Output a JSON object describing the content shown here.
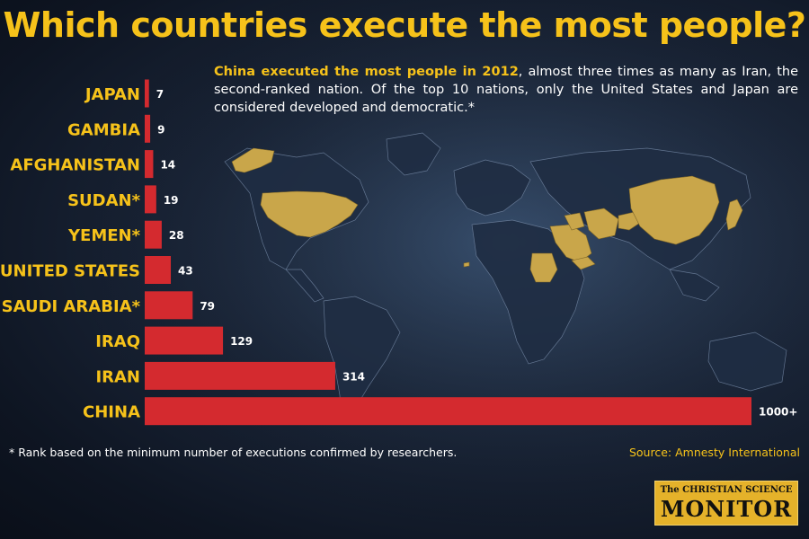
{
  "title": "Which countries execute the most people?",
  "subtitle": {
    "highlight": "China executed the most people in 2012",
    "rest": ", almost three times as many as Iran, the second-ranked nation. Of the top 10 nations, only the United States and Japan are considered developed and democratic.*"
  },
  "footnote": "* Rank based on the minimum number of executions confirmed by researchers.",
  "source": "Source: Amnesty International",
  "logo": {
    "line1": "The CHRISTIAN SCIENCE",
    "line2": "MONITOR"
  },
  "colors": {
    "bar": "#d42a2f",
    "label": "#f6c21a",
    "value": "#ffffff",
    "highlight": "#f6c21a",
    "map_land": "#c9a64a"
  },
  "chart_data": {
    "type": "bar",
    "orientation": "horizontal",
    "categories": [
      "JAPAN",
      "GAMBIA",
      "AFGHANISTAN",
      "SUDAN*",
      "YEMEN*",
      "UNITED STATES",
      "SAUDI ARABIA*",
      "IRAQ",
      "IRAN",
      "CHINA"
    ],
    "values": [
      7,
      9,
      14,
      19,
      28,
      43,
      79,
      129,
      314,
      1000
    ],
    "value_labels": [
      "7",
      "9",
      "14",
      "19",
      "28",
      "43",
      "79",
      "129",
      "314",
      "1000+"
    ],
    "title": "Which countries execute the most people?",
    "xlabel": "",
    "ylabel": "",
    "xlim": [
      0,
      1000
    ],
    "grid": false,
    "legend": "none"
  }
}
